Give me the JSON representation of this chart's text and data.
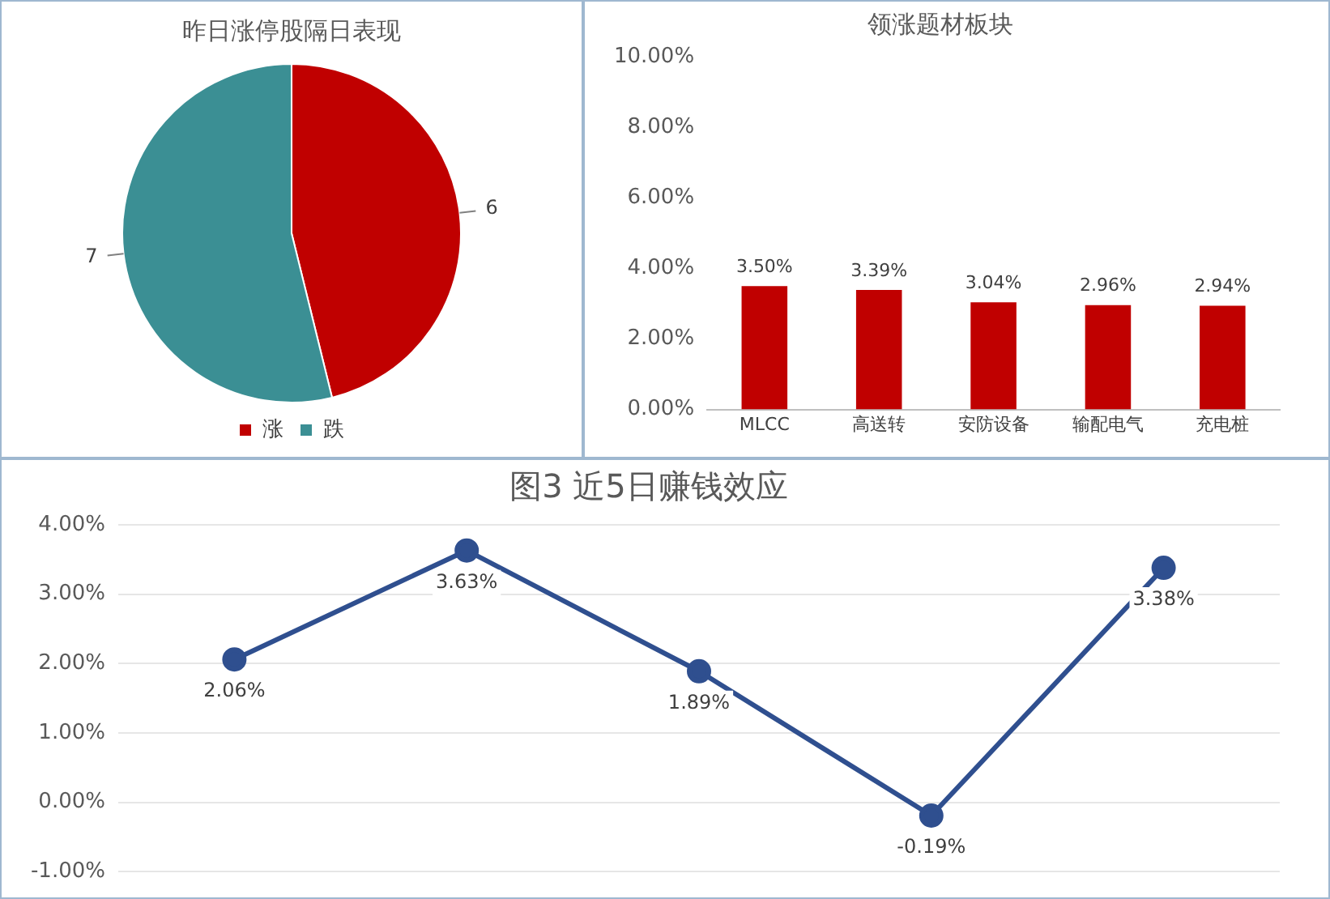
{
  "chart_data": [
    {
      "type": "pie",
      "title": "昨日涨停股隔日表现",
      "categories": [
        "涨",
        "跌"
      ],
      "values": [
        6,
        7
      ],
      "colors": [
        "#c00000",
        "#3b8f94"
      ],
      "data_labels": true,
      "legend": "bottom"
    },
    {
      "type": "bar",
      "title": "领涨题材板块",
      "categories": [
        "MLCC",
        "高送转",
        "安防设备",
        "输配电气",
        "充电桩"
      ],
      "values": [
        3.5,
        3.39,
        3.04,
        2.96,
        2.94
      ],
      "color": "#c00000",
      "value_labels": [
        "3.50%",
        "3.39%",
        "3.04%",
        "2.96%",
        "2.94%"
      ],
      "ylim": [
        0,
        10
      ],
      "yticks": [
        {
          "value": 0,
          "label": "0.00%"
        },
        {
          "value": 2,
          "label": "2.00%"
        },
        {
          "value": 4,
          "label": "4.00%"
        },
        {
          "value": 6,
          "label": "6.00%"
        },
        {
          "value": 8,
          "label": "8.00%"
        },
        {
          "value": 10,
          "label": "10.00%"
        }
      ]
    },
    {
      "type": "line",
      "title": "图3 近5日赚钱效应",
      "categories": [
        null,
        null,
        null,
        null,
        null
      ],
      "values": [
        2.06,
        3.63,
        1.89,
        -0.19,
        3.38
      ],
      "color": "#2f4f8f",
      "marker": "circle",
      "value_labels": [
        "2.06%",
        "3.63%",
        "1.89%",
        "-0.19%",
        "3.38%"
      ],
      "ylim": [
        -1,
        4
      ],
      "yticks": [
        {
          "value": -1,
          "label": "-1.00%"
        },
        {
          "value": 0,
          "label": "0.00%"
        },
        {
          "value": 1,
          "label": "1.00%"
        },
        {
          "value": 2,
          "label": "2.00%"
        },
        {
          "value": 3,
          "label": "3.00%"
        },
        {
          "value": 4,
          "label": "4.00%"
        }
      ],
      "grid": "y",
      "tick_labels": "y"
    }
  ]
}
